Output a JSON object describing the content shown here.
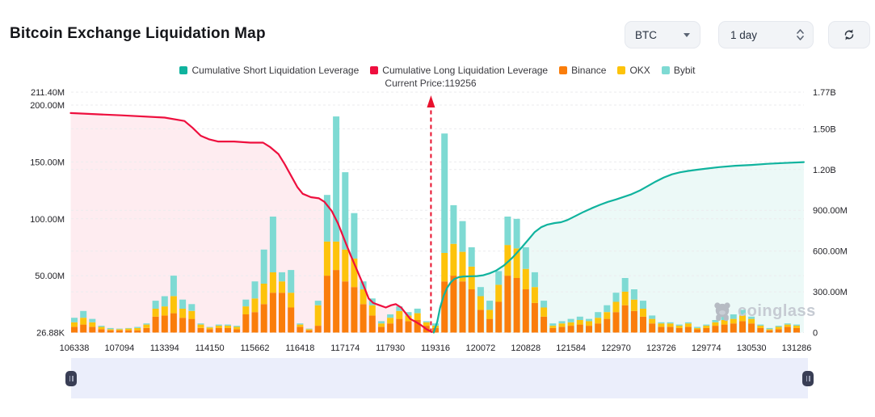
{
  "header": {
    "title": "Bitcoin Exchange Liquidation Map",
    "symbol_select": {
      "value": "BTC"
    },
    "interval_select": {
      "value": "1 day"
    }
  },
  "legend": {
    "items": [
      {
        "label": "Cumulative Short Liquidation Leverage",
        "color": "#10b39e"
      },
      {
        "label": "Cumulative Long Liquidation Leverage",
        "color": "#ee0f3e"
      },
      {
        "label": "Binance",
        "color": "#fa7d0b"
      },
      {
        "label": "OKX",
        "color": "#fdc30b"
      },
      {
        "label": "Bybit",
        "color": "#7edad3"
      }
    ]
  },
  "watermark": {
    "text": "coinglass"
  },
  "chart_data": {
    "type": "mixed",
    "title": "Bitcoin Exchange Liquidation Map",
    "annotation": {
      "label": "Current Price:119256",
      "slot": 39.5,
      "color": "#e8112d"
    },
    "x_axis": {
      "tick_labels": [
        "106338",
        "107094",
        "113394",
        "114150",
        "115662",
        "116418",
        "117174",
        "117930",
        "119316",
        "120072",
        "120828",
        "121584",
        "122970",
        "123726",
        "129774",
        "130530",
        "131286"
      ],
      "ticks_every_n_bars": 5
    },
    "left_axis": {
      "unit": "USD",
      "ticks": [
        {
          "label": "211.40M",
          "value": 211.4
        },
        {
          "label": "200.00M",
          "value": 200
        },
        {
          "label": "150.00M",
          "value": 150
        },
        {
          "label": "100.00M",
          "value": 100
        },
        {
          "label": "50.00M",
          "value": 50
        },
        {
          "label": "26.88K",
          "value": 0
        }
      ]
    },
    "right_axis": {
      "unit": "USD",
      "ticks": [
        {
          "label": "1.77B",
          "value": 1770
        },
        {
          "label": "1.50B",
          "value": 1500
        },
        {
          "label": "1.20B",
          "value": 1200
        },
        {
          "label": "900.00M",
          "value": 900
        },
        {
          "label": "600.00M",
          "value": 600
        },
        {
          "label": "300.00M",
          "value": 300
        },
        {
          "label": "0",
          "value": 0
        }
      ]
    },
    "bar_slot_count": 81,
    "bar_series": [
      {
        "name": "Binance",
        "color": "#fa7d0b",
        "values_M": [
          5,
          7,
          5,
          3,
          2,
          2,
          2,
          2,
          4,
          14,
          15,
          17,
          13,
          12,
          4,
          3,
          4,
          4,
          3,
          16,
          18,
          25,
          35,
          35,
          22,
          5,
          2,
          6,
          50,
          55,
          45,
          40,
          25,
          15,
          5,
          8,
          12,
          10,
          11,
          6,
          4,
          45,
          50,
          45,
          38,
          20,
          12,
          27,
          50,
          48,
          38,
          26,
          14,
          4,
          5,
          6,
          7,
          6,
          8,
          12,
          18,
          24,
          19,
          14,
          8,
          5,
          5,
          4,
          5,
          3,
          4,
          6,
          7,
          8,
          10,
          8,
          4,
          2,
          3,
          5,
          4
        ]
      },
      {
        "name": "OKX",
        "color": "#fdc30b",
        "values_M": [
          4,
          6,
          4,
          2,
          1,
          1,
          1.5,
          2,
          3,
          7,
          8,
          15,
          8,
          7,
          3,
          1.5,
          2,
          2,
          2,
          7,
          12,
          18,
          18,
          10,
          13,
          2,
          1,
          18,
          30,
          25,
          28,
          25,
          13,
          9,
          3,
          5,
          7,
          5,
          6,
          3,
          2,
          25,
          28,
          26,
          20,
          12,
          8,
          15,
          27,
          26,
          18,
          14,
          8,
          2,
          3,
          3,
          4,
          4,
          5,
          6,
          9,
          12,
          10,
          7,
          4,
          3,
          3,
          2,
          3,
          1,
          2,
          3,
          4,
          4,
          5,
          4,
          2,
          1,
          2,
          2,
          2
        ]
      },
      {
        "name": "Bybit",
        "color": "#7edad3",
        "values_M": [
          4,
          6,
          3,
          1,
          1,
          0.5,
          0.5,
          1,
          1,
          7,
          9,
          18,
          8,
          6,
          1,
          0.5,
          1,
          1,
          1,
          6,
          15,
          30,
          49,
          8,
          20,
          1,
          0.5,
          4,
          41,
          110,
          68,
          40,
          7,
          6,
          2,
          3,
          4,
          3,
          4,
          1,
          2,
          105,
          34,
          27,
          17,
          8,
          8,
          12,
          25,
          26,
          19,
          13,
          6,
          2,
          2,
          3,
          3,
          2,
          5,
          6,
          8,
          12,
          9,
          7,
          3,
          1,
          1,
          1,
          1,
          1,
          1,
          2,
          3,
          4,
          5,
          2,
          1,
          1,
          1,
          1,
          1
        ]
      }
    ],
    "line_series": [
      {
        "name": "Cumulative Long Liquidation Leverage",
        "axis": "left",
        "color": "#ee0f3e",
        "fill": "rgba(238,15,62,0.08)",
        "points": [
          [
            -0.4,
            193
          ],
          [
            5.2,
            191
          ],
          [
            10,
            189
          ],
          [
            12.2,
            186
          ],
          [
            13.1,
            180
          ],
          [
            14,
            173
          ],
          [
            14.9,
            170
          ],
          [
            15.9,
            168
          ],
          [
            17.7,
            168
          ],
          [
            19.5,
            167
          ],
          [
            20.9,
            167
          ],
          [
            21.7,
            163
          ],
          [
            22.6,
            157
          ],
          [
            23.3,
            148
          ],
          [
            24,
            138
          ],
          [
            24.7,
            128
          ],
          [
            25.3,
            122
          ],
          [
            26.2,
            119
          ],
          [
            27.1,
            118
          ],
          [
            27.7,
            115
          ],
          [
            28.5,
            107
          ],
          [
            29.2,
            96
          ],
          [
            29.9,
            82
          ],
          [
            30.6,
            68
          ],
          [
            31.3,
            55
          ],
          [
            32,
            42
          ],
          [
            32.6,
            30
          ],
          [
            33.1,
            26
          ],
          [
            33.8,
            24
          ],
          [
            34.5,
            22
          ],
          [
            35.1,
            24
          ],
          [
            35.6,
            25
          ],
          [
            36.2,
            22
          ],
          [
            36.7,
            17
          ],
          [
            37.2,
            12
          ],
          [
            37.9,
            9
          ],
          [
            38.5,
            6
          ],
          [
            39,
            3
          ],
          [
            39.6,
            0.5
          ]
        ]
      },
      {
        "name": "Cumulative Short Liquidation Leverage",
        "axis": "right",
        "color": "#10b39e",
        "fill": "rgba(16,179,158,0.08)",
        "points": [
          [
            39.8,
            0
          ],
          [
            40.2,
            80
          ],
          [
            40.5,
            180
          ],
          [
            40.9,
            270
          ],
          [
            41.3,
            330
          ],
          [
            41.7,
            370
          ],
          [
            42.1,
            395
          ],
          [
            42.6,
            408
          ],
          [
            43.1,
            413
          ],
          [
            43.8,
            414
          ],
          [
            44.6,
            416
          ],
          [
            45.3,
            422
          ],
          [
            46,
            436
          ],
          [
            46.7,
            456
          ],
          [
            47.6,
            495
          ],
          [
            48.5,
            550
          ],
          [
            49.4,
            615
          ],
          [
            50.3,
            685
          ],
          [
            51,
            740
          ],
          [
            51.7,
            775
          ],
          [
            52.4,
            795
          ],
          [
            53.2,
            806
          ],
          [
            53.9,
            812
          ],
          [
            54.6,
            828
          ],
          [
            55.5,
            858
          ],
          [
            56.4,
            888
          ],
          [
            57.3,
            915
          ],
          [
            58.2,
            940
          ],
          [
            59.1,
            962
          ],
          [
            60,
            980
          ],
          [
            60.8,
            998
          ],
          [
            61.7,
            1018
          ],
          [
            62.6,
            1045
          ],
          [
            63.5,
            1078
          ],
          [
            64.4,
            1112
          ],
          [
            65.3,
            1142
          ],
          [
            66.2,
            1165
          ],
          [
            67.1,
            1180
          ],
          [
            68,
            1190
          ],
          [
            68.9,
            1198
          ],
          [
            70.1,
            1208
          ],
          [
            71.4,
            1218
          ],
          [
            73.2,
            1228
          ],
          [
            75,
            1234
          ],
          [
            76.8,
            1242
          ],
          [
            78.6,
            1248
          ],
          [
            80.8,
            1255
          ]
        ]
      }
    ],
    "grid": {
      "color": "#ebebee",
      "dashed": true
    }
  }
}
